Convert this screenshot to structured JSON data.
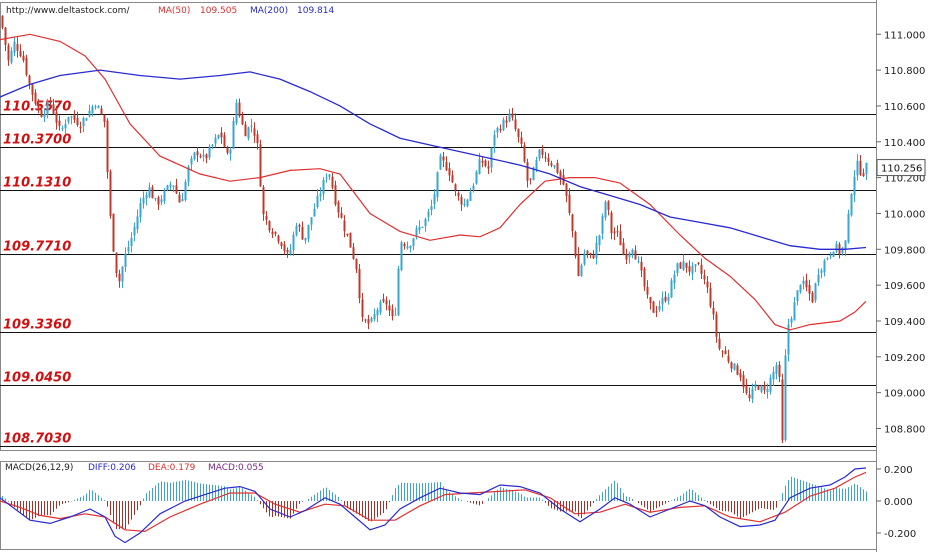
{
  "header": {
    "url": "http://www.deltastock.com/",
    "ma50_label": "MA(50)",
    "ma50_value": "109.505",
    "ma200_label": "MA(200)",
    "ma200_value": "109.814"
  },
  "colors": {
    "up": "#3aa6d0",
    "down": "#c0392b",
    "ma50": "#e03030",
    "ma200": "#2a2ad0",
    "level_text": "#d01010",
    "hist_pos": "#3aa6d0",
    "hist_neg": "#a0302a",
    "diff": "#2a2ad0",
    "dea": "#e03030"
  },
  "macd_header": {
    "title": "MACD(26,12,9)",
    "diff_label": "DIFF:0.206",
    "dea_label": "DEA:0.179",
    "macd_label": "MACD:0.055"
  },
  "chart_data": [
    {
      "type": "candlestick",
      "ylim": [
        108.68,
        111.18
      ],
      "yticks": [
        "111.000",
        "110.800",
        "110.600",
        "110.400",
        "110.200",
        "110.000",
        "109.800",
        "109.600",
        "109.400",
        "109.200",
        "109.000",
        "108.800"
      ],
      "current_price": "110.256",
      "levels": [
        {
          "value": 110.557,
          "label": "110.5570"
        },
        {
          "value": 110.37,
          "label": "110.3700"
        },
        {
          "value": 110.131,
          "label": "110.1310"
        },
        {
          "value": 109.771,
          "label": "109.7710"
        },
        {
          "value": 109.336,
          "label": "109.3360"
        },
        {
          "value": 109.045,
          "label": "109.0450"
        },
        {
          "value": 108.703,
          "label": "108.7030"
        }
      ],
      "close_path": [
        [
          0,
          111.1
        ],
        [
          8,
          110.85
        ],
        [
          14,
          110.95
        ],
        [
          22,
          110.88
        ],
        [
          30,
          110.7
        ],
        [
          40,
          110.55
        ],
        [
          50,
          110.62
        ],
        [
          60,
          110.45
        ],
        [
          68,
          110.55
        ],
        [
          80,
          110.5
        ],
        [
          95,
          110.62
        ],
        [
          105,
          110.5
        ],
        [
          108,
          110.1
        ],
        [
          112,
          109.85
        ],
        [
          118,
          109.6
        ],
        [
          124,
          109.75
        ],
        [
          132,
          109.88
        ],
        [
          140,
          110.05
        ],
        [
          148,
          110.15
        ],
        [
          156,
          110.05
        ],
        [
          165,
          110.12
        ],
        [
          172,
          110.18
        ],
        [
          180,
          110.05
        ],
        [
          188,
          110.25
        ],
        [
          196,
          110.35
        ],
        [
          204,
          110.3
        ],
        [
          212,
          110.38
        ],
        [
          220,
          110.45
        ],
        [
          228,
          110.3
        ],
        [
          236,
          110.62
        ],
        [
          244,
          110.45
        ],
        [
          252,
          110.5
        ],
        [
          258,
          110.35
        ],
        [
          262,
          110.0
        ],
        [
          270,
          109.92
        ],
        [
          280,
          109.85
        ],
        [
          288,
          109.75
        ],
        [
          296,
          109.95
        ],
        [
          304,
          109.85
        ],
        [
          312,
          110.0
        ],
        [
          320,
          110.12
        ],
        [
          328,
          110.25
        ],
        [
          336,
          110.05
        ],
        [
          344,
          109.92
        ],
        [
          350,
          109.82
        ],
        [
          356,
          109.7
        ],
        [
          362,
          109.4
        ],
        [
          370,
          109.38
        ],
        [
          378,
          109.48
        ],
        [
          386,
          109.5
        ],
        [
          394,
          109.38
        ],
        [
          400,
          109.85
        ],
        [
          408,
          109.82
        ],
        [
          416,
          109.9
        ],
        [
          424,
          109.95
        ],
        [
          432,
          110.05
        ],
        [
          440,
          110.3
        ],
        [
          448,
          110.25
        ],
        [
          456,
          110.1
        ],
        [
          464,
          110.05
        ],
        [
          472,
          110.15
        ],
        [
          480,
          110.3
        ],
        [
          488,
          110.25
        ],
        [
          494,
          110.45
        ],
        [
          502,
          110.5
        ],
        [
          510,
          110.55
        ],
        [
          516,
          110.45
        ],
        [
          522,
          110.35
        ],
        [
          528,
          110.15
        ],
        [
          534,
          110.25
        ],
        [
          540,
          110.35
        ],
        [
          548,
          110.3
        ],
        [
          556,
          110.25
        ],
        [
          564,
          110.15
        ],
        [
          572,
          109.9
        ],
        [
          578,
          109.65
        ],
        [
          584,
          109.78
        ],
        [
          592,
          109.75
        ],
        [
          600,
          109.9
        ],
        [
          606,
          110.1
        ],
        [
          610,
          109.9
        ],
        [
          618,
          109.88
        ],
        [
          624,
          109.75
        ],
        [
          632,
          109.82
        ],
        [
          640,
          109.68
        ],
        [
          648,
          109.5
        ],
        [
          654,
          109.45
        ],
        [
          660,
          109.5
        ],
        [
          668,
          109.55
        ],
        [
          676,
          109.7
        ],
        [
          684,
          109.72
        ],
        [
          690,
          109.68
        ],
        [
          698,
          109.7
        ],
        [
          706,
          109.6
        ],
        [
          712,
          109.45
        ],
        [
          718,
          109.25
        ],
        [
          724,
          109.22
        ],
        [
          732,
          109.15
        ],
        [
          740,
          109.1
        ],
        [
          748,
          108.95
        ],
        [
          756,
          109.05
        ],
        [
          764,
          109.0
        ],
        [
          772,
          109.1
        ],
        [
          778,
          109.18
        ],
        [
          782,
          108.72
        ],
        [
          786,
          109.35
        ],
        [
          792,
          109.45
        ],
        [
          800,
          109.62
        ],
        [
          806,
          109.58
        ],
        [
          812,
          109.52
        ],
        [
          818,
          109.68
        ],
        [
          826,
          109.75
        ],
        [
          834,
          109.82
        ],
        [
          840,
          109.78
        ],
        [
          846,
          109.85
        ],
        [
          850,
          110.1
        ],
        [
          856,
          110.28
        ],
        [
          862,
          110.22
        ],
        [
          866,
          110.26
        ]
      ],
      "ma50_path": [
        [
          0,
          110.97
        ],
        [
          30,
          111.0
        ],
        [
          60,
          110.96
        ],
        [
          85,
          110.88
        ],
        [
          105,
          110.75
        ],
        [
          130,
          110.5
        ],
        [
          160,
          110.32
        ],
        [
          200,
          110.22
        ],
        [
          230,
          110.18
        ],
        [
          260,
          110.2
        ],
        [
          290,
          110.24
        ],
        [
          320,
          110.25
        ],
        [
          340,
          110.22
        ],
        [
          370,
          110.0
        ],
        [
          400,
          109.9
        ],
        [
          430,
          109.85
        ],
        [
          460,
          109.88
        ],
        [
          480,
          109.87
        ],
        [
          500,
          109.92
        ],
        [
          520,
          110.05
        ],
        [
          545,
          110.18
        ],
        [
          570,
          110.2
        ],
        [
          595,
          110.2
        ],
        [
          620,
          110.17
        ],
        [
          650,
          110.05
        ],
        [
          680,
          109.88
        ],
        [
          705,
          109.75
        ],
        [
          730,
          109.65
        ],
        [
          755,
          109.52
        ],
        [
          775,
          109.38
        ],
        [
          790,
          109.35
        ],
        [
          810,
          109.38
        ],
        [
          840,
          109.4
        ],
        [
          855,
          109.45
        ],
        [
          866,
          109.51
        ]
      ],
      "ma200_path": [
        [
          0,
          110.65
        ],
        [
          30,
          110.72
        ],
        [
          60,
          110.77
        ],
        [
          100,
          110.8
        ],
        [
          140,
          110.77
        ],
        [
          180,
          110.75
        ],
        [
          220,
          110.77
        ],
        [
          250,
          110.79
        ],
        [
          280,
          110.75
        ],
        [
          310,
          110.68
        ],
        [
          340,
          110.6
        ],
        [
          370,
          110.5
        ],
        [
          400,
          110.42
        ],
        [
          440,
          110.37
        ],
        [
          480,
          110.32
        ],
        [
          520,
          110.27
        ],
        [
          550,
          110.22
        ],
        [
          580,
          110.15
        ],
        [
          610,
          110.1
        ],
        [
          640,
          110.05
        ],
        [
          670,
          109.98
        ],
        [
          700,
          109.95
        ],
        [
          730,
          109.92
        ],
        [
          760,
          109.87
        ],
        [
          790,
          109.82
        ],
        [
          820,
          109.8
        ],
        [
          845,
          109.8
        ],
        [
          866,
          109.81
        ]
      ]
    },
    {
      "type": "bar+line",
      "title": "MACD(26,12,9)",
      "ylim": [
        -0.3,
        0.25
      ],
      "yticks": [
        "0.200",
        "0.000",
        "-0.200"
      ],
      "series": [
        {
          "name": "DIFF",
          "value": 0.206
        },
        {
          "name": "DEA",
          "value": 0.179
        },
        {
          "name": "MACD",
          "value": 0.055
        }
      ],
      "diff_path": [
        [
          0,
          0.02
        ],
        [
          15,
          -0.05
        ],
        [
          30,
          -0.12
        ],
        [
          50,
          -0.14
        ],
        [
          70,
          -0.1
        ],
        [
          90,
          -0.05
        ],
        [
          105,
          -0.1
        ],
        [
          115,
          -0.22
        ],
        [
          125,
          -0.26
        ],
        [
          140,
          -0.2
        ],
        [
          160,
          -0.08
        ],
        [
          185,
          0.0
        ],
        [
          205,
          0.04
        ],
        [
          225,
          0.08
        ],
        [
          240,
          0.09
        ],
        [
          255,
          0.06
        ],
        [
          270,
          -0.05
        ],
        [
          290,
          -0.1
        ],
        [
          305,
          -0.06
        ],
        [
          325,
          0.02
        ],
        [
          340,
          -0.02
        ],
        [
          355,
          -0.1
        ],
        [
          370,
          -0.18
        ],
        [
          385,
          -0.15
        ],
        [
          400,
          -0.05
        ],
        [
          420,
          0.02
        ],
        [
          440,
          0.08
        ],
        [
          460,
          0.05
        ],
        [
          480,
          0.04
        ],
        [
          500,
          0.1
        ],
        [
          520,
          0.09
        ],
        [
          540,
          0.05
        ],
        [
          560,
          -0.05
        ],
        [
          580,
          -0.13
        ],
        [
          600,
          -0.05
        ],
        [
          615,
          0.02
        ],
        [
          630,
          -0.02
        ],
        [
          650,
          -0.1
        ],
        [
          670,
          -0.05
        ],
        [
          690,
          0.0
        ],
        [
          705,
          -0.03
        ],
        [
          720,
          -0.1
        ],
        [
          740,
          -0.16
        ],
        [
          760,
          -0.15
        ],
        [
          775,
          -0.12
        ],
        [
          790,
          0.02
        ],
        [
          810,
          0.08
        ],
        [
          830,
          0.1
        ],
        [
          845,
          0.15
        ],
        [
          855,
          0.2
        ],
        [
          866,
          0.206
        ]
      ],
      "dea_path": [
        [
          0,
          0.0
        ],
        [
          20,
          -0.04
        ],
        [
          40,
          -0.09
        ],
        [
          60,
          -0.11
        ],
        [
          85,
          -0.08
        ],
        [
          105,
          -0.1
        ],
        [
          125,
          -0.18
        ],
        [
          145,
          -0.19
        ],
        [
          170,
          -0.1
        ],
        [
          200,
          -0.02
        ],
        [
          230,
          0.05
        ],
        [
          255,
          0.05
        ],
        [
          275,
          -0.02
        ],
        [
          300,
          -0.07
        ],
        [
          325,
          -0.02
        ],
        [
          345,
          -0.03
        ],
        [
          370,
          -0.12
        ],
        [
          395,
          -0.12
        ],
        [
          420,
          -0.03
        ],
        [
          445,
          0.04
        ],
        [
          470,
          0.05
        ],
        [
          500,
          0.06
        ],
        [
          525,
          0.07
        ],
        [
          550,
          0.02
        ],
        [
          575,
          -0.08
        ],
        [
          600,
          -0.07
        ],
        [
          625,
          -0.02
        ],
        [
          650,
          -0.07
        ],
        [
          680,
          -0.04
        ],
        [
          705,
          -0.03
        ],
        [
          730,
          -0.1
        ],
        [
          760,
          -0.13
        ],
        [
          785,
          -0.07
        ],
        [
          810,
          0.03
        ],
        [
          835,
          0.08
        ],
        [
          855,
          0.15
        ],
        [
          866,
          0.179
        ]
      ]
    }
  ]
}
